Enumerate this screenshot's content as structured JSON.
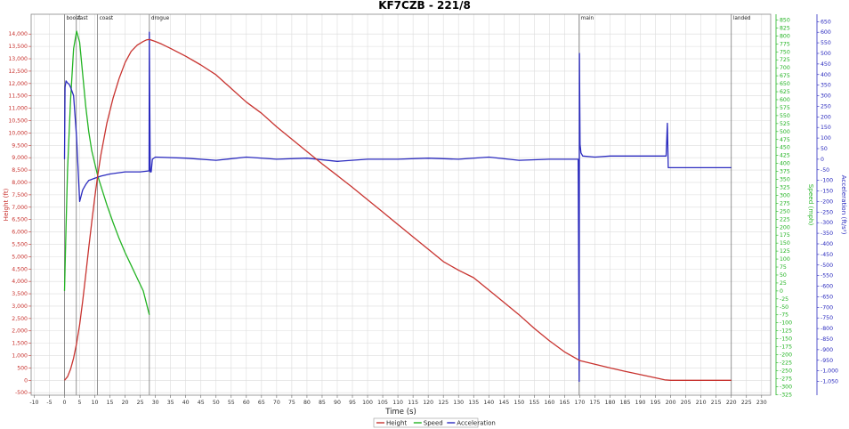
{
  "chart_data": {
    "type": "line",
    "title": "KF7CZB - 221/8",
    "xlabel": "Time (s)",
    "xlim": [
      -11,
      233
    ],
    "xticks": [
      -10,
      -5,
      0,
      5,
      10,
      15,
      20,
      25,
      30,
      35,
      40,
      45,
      50,
      55,
      60,
      65,
      70,
      75,
      80,
      85,
      90,
      95,
      100,
      105,
      110,
      115,
      120,
      125,
      130,
      135,
      140,
      145,
      150,
      155,
      160,
      165,
      170,
      175,
      180,
      185,
      190,
      195,
      200,
      205,
      210,
      215,
      220,
      225,
      230
    ],
    "axes": {
      "height": {
        "label": "Height (ft)",
        "color": "#c8332f",
        "lim": [
          -600,
          14800
        ],
        "tick_step": 500,
        "tick_min": -500,
        "tick_max": 14000,
        "format": "comma"
      },
      "speed": {
        "label": "Speed (mph)",
        "color": "#22b322",
        "lim": [
          -327,
          868
        ],
        "tick_step": 25,
        "tick_min": -325,
        "tick_max": 850,
        "format": "plain"
      },
      "acceleration": {
        "label": "Acceleration (ft/s²)",
        "color": "#2b2bbf",
        "lim": [
          -1115,
          685
        ],
        "tick_step": 50,
        "tick_min": -1050,
        "tick_max": 650,
        "format": "comma"
      }
    },
    "events": [
      {
        "t": 0.0,
        "label": "boost"
      },
      {
        "t": 3.9,
        "label": "fast"
      },
      {
        "t": 10.9,
        "label": "coast"
      },
      {
        "t": 28.0,
        "label": "drogue"
      },
      {
        "t": 169.8,
        "label": "main"
      },
      {
        "t": 220.0,
        "label": "landed"
      }
    ],
    "series": [
      {
        "name": "Height",
        "color": "#c8332f",
        "x": [
          0,
          1,
          2,
          3,
          4,
          5,
          6,
          7,
          8,
          9,
          10,
          11,
          12,
          14,
          16,
          18,
          20,
          22,
          24,
          26,
          27,
          28,
          30,
          32,
          35,
          40,
          45,
          50,
          55,
          60,
          65,
          70,
          75,
          80,
          85,
          90,
          95,
          100,
          105,
          110,
          115,
          120,
          125,
          130,
          135,
          140,
          145,
          150,
          155,
          160,
          165,
          170,
          175,
          180,
          185,
          190,
          195,
          198,
          200,
          210,
          220
        ],
        "y": [
          0,
          150,
          450,
          900,
          1500,
          2250,
          3200,
          4250,
          5350,
          6400,
          7400,
          8300,
          9100,
          10400,
          11400,
          12200,
          12850,
          13300,
          13550,
          13700,
          13760,
          13780,
          13700,
          13600,
          13420,
          13100,
          12750,
          12350,
          11800,
          11250,
          10800,
          10250,
          9750,
          9250,
          8750,
          8280,
          7800,
          7300,
          6800,
          6300,
          5800,
          5300,
          4800,
          4450,
          4150,
          3650,
          3150,
          2650,
          2100,
          1600,
          1150,
          800,
          650,
          500,
          360,
          230,
          100,
          20,
          0,
          0,
          0
        ]
      },
      {
        "name": "Speed",
        "color": "#22b322",
        "x": [
          0,
          0.5,
          1,
          2,
          3,
          4,
          5,
          6,
          7,
          8,
          9,
          10,
          11,
          12,
          14,
          16,
          18,
          20,
          22,
          24,
          26,
          28
        ],
        "y": [
          0,
          200,
          380,
          600,
          760,
          815,
          780,
          680,
          580,
          500,
          440,
          400,
          360,
          330,
          270,
          215,
          165,
          120,
          80,
          40,
          0,
          -75
        ]
      },
      {
        "name": "Acceleration",
        "color": "#2b2bbf",
        "x": [
          0,
          0.2,
          0.5,
          1,
          1.5,
          2,
          3,
          4,
          5,
          6,
          7,
          8,
          10,
          12,
          15,
          20,
          25,
          27.9,
          28,
          28.3,
          28.6,
          29,
          30,
          40,
          50,
          60,
          70,
          80,
          90,
          100,
          110,
          120,
          130,
          140,
          150,
          160,
          169.5,
          169.8,
          169.9,
          170.1,
          170.4,
          171,
          175,
          180,
          185,
          195,
          198.5,
          198.9,
          199.2,
          200,
          210,
          220
        ],
        "y": [
          0,
          340,
          370,
          360,
          355,
          340,
          300,
          100,
          -200,
          -145,
          -120,
          -100,
          -90,
          -80,
          -70,
          -60,
          -60,
          -55,
          600,
          -60,
          -60,
          0,
          10,
          5,
          -5,
          10,
          0,
          5,
          -10,
          0,
          0,
          5,
          0,
          10,
          -5,
          0,
          0,
          -1050,
          500,
          70,
          30,
          15,
          10,
          15,
          15,
          15,
          15,
          170,
          -40,
          -40,
          -40,
          -40
        ]
      }
    ]
  },
  "legend": [
    {
      "label": "Height",
      "color": "#c8332f"
    },
    {
      "label": "Speed",
      "color": "#22b322"
    },
    {
      "label": "Acceleration",
      "color": "#2b2bbf"
    }
  ]
}
